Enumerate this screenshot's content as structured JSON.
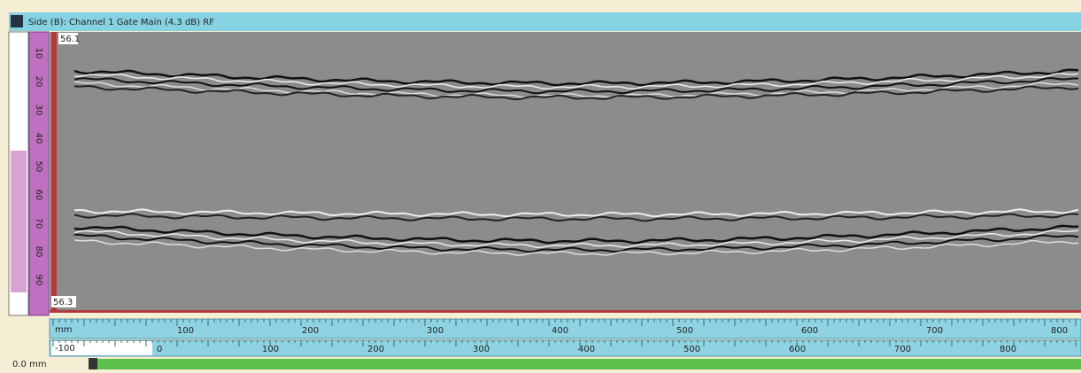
{
  "window": {
    "title": "Side (B): Channel 1 Gate Main (4.3 dB) RF"
  },
  "left_ruler": {
    "labels": [
      "10",
      "20",
      "30",
      "40",
      "50",
      "60",
      "70",
      "80",
      "90"
    ]
  },
  "scan": {
    "top_label": "56.1",
    "bottom_label": "56.3"
  },
  "ruler_top": {
    "unit": "mm",
    "labels": [
      "100",
      "200",
      "300",
      "400",
      "500",
      "600",
      "700",
      "800"
    ]
  },
  "ruler_bottom": {
    "field": "-100",
    "labels": [
      "0",
      "100",
      "200",
      "300",
      "400",
      "500",
      "600",
      "700",
      "800"
    ]
  },
  "status": {
    "position": "0.0 mm"
  }
}
